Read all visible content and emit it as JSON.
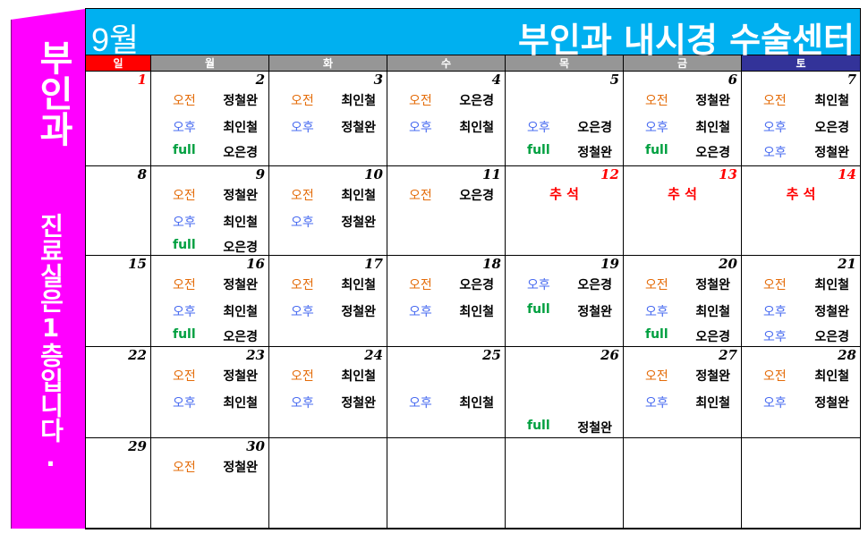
{
  "banner": {
    "title": "부인과",
    "notice": "진료실은1층입니다."
  },
  "header": {
    "month": "9월",
    "center_name": "부인과 내시경 수술센터"
  },
  "weekdays": [
    {
      "label": "일",
      "color": "#ff0000"
    },
    {
      "label": "월",
      "color": "#969696"
    },
    {
      "label": "화",
      "color": "#969696"
    },
    {
      "label": "수",
      "color": "#969696"
    },
    {
      "label": "목",
      "color": "#969696"
    },
    {
      "label": "금",
      "color": "#969696"
    },
    {
      "label": "토",
      "color": "#333399"
    }
  ],
  "colors": {
    "am": "#e46c0a",
    "pm": "#4a6cf0",
    "full": "#00a040",
    "header": "#00b0f0",
    "banner": "#ff00ff"
  },
  "weeks": [
    [
      {
        "day": "1",
        "red": true,
        "entries": []
      },
      {
        "day": "2",
        "entries": [
          {
            "label": "오전",
            "name": "정철완",
            "type": "am"
          },
          {
            "label": "오후",
            "name": "최인철",
            "type": "pm"
          },
          {
            "label": "full",
            "name": "오은경",
            "type": "full"
          }
        ]
      },
      {
        "day": "3",
        "entries": [
          {
            "label": "오전",
            "name": "최인철",
            "type": "am"
          },
          {
            "label": "오후",
            "name": "정철완",
            "type": "pm"
          }
        ]
      },
      {
        "day": "4",
        "entries": [
          {
            "label": "오전",
            "name": "오은경",
            "type": "am"
          },
          {
            "label": "오후",
            "name": "최인철",
            "type": "pm"
          }
        ]
      },
      {
        "day": "5",
        "entries": [
          null,
          {
            "label": "오후",
            "name": "오은경",
            "type": "pm"
          },
          {
            "label": "full",
            "name": "정철완",
            "type": "full"
          }
        ]
      },
      {
        "day": "6",
        "entries": [
          {
            "label": "오전",
            "name": "정철완",
            "type": "am"
          },
          {
            "label": "오후",
            "name": "최인철",
            "type": "pm"
          },
          {
            "label": "full",
            "name": "오은경",
            "type": "full"
          }
        ]
      },
      {
        "day": "7",
        "entries": [
          {
            "label": "오전",
            "name": "최인철",
            "type": "am"
          },
          {
            "label": "오후",
            "name": "오은경",
            "type": "pm"
          },
          {
            "label": "오후",
            "name": "정철완",
            "type": "pm"
          }
        ]
      }
    ],
    [
      {
        "day": "8",
        "entries": []
      },
      {
        "day": "9",
        "entries": [
          {
            "label": "오전",
            "name": "정철완",
            "type": "am"
          },
          {
            "label": "오후",
            "name": "최인철",
            "type": "pm"
          },
          {
            "label": "full",
            "name": "오은경",
            "type": "full"
          }
        ]
      },
      {
        "day": "10",
        "entries": [
          {
            "label": "오전",
            "name": "최인철",
            "type": "am"
          },
          {
            "label": "오후",
            "name": "정철완",
            "type": "pm"
          }
        ]
      },
      {
        "day": "11",
        "entries": [
          {
            "label": "오전",
            "name": "오은경",
            "type": "am"
          }
        ]
      },
      {
        "day": "12",
        "red": true,
        "holiday": "추 석",
        "entries": []
      },
      {
        "day": "13",
        "red": true,
        "holiday": "추 석",
        "entries": []
      },
      {
        "day": "14",
        "red": true,
        "holiday": "추 석",
        "entries": []
      }
    ],
    [
      {
        "day": "15",
        "entries": []
      },
      {
        "day": "16",
        "entries": [
          {
            "label": "오전",
            "name": "정철완",
            "type": "am"
          },
          {
            "label": "오후",
            "name": "최인철",
            "type": "pm"
          },
          {
            "label": "full",
            "name": "오은경",
            "type": "full"
          }
        ]
      },
      {
        "day": "17",
        "entries": [
          {
            "label": "오전",
            "name": "최인철",
            "type": "am"
          },
          {
            "label": "오후",
            "name": "정철완",
            "type": "pm"
          }
        ]
      },
      {
        "day": "18",
        "entries": [
          {
            "label": "오전",
            "name": "오은경",
            "type": "am"
          },
          {
            "label": "오후",
            "name": "최인철",
            "type": "pm"
          }
        ]
      },
      {
        "day": "19",
        "entries": [
          {
            "label": "오후",
            "name": "오은경",
            "type": "pm"
          },
          {
            "label": "full",
            "name": "정철완",
            "type": "full"
          }
        ]
      },
      {
        "day": "20",
        "entries": [
          {
            "label": "오전",
            "name": "정철완",
            "type": "am"
          },
          {
            "label": "오후",
            "name": "최인철",
            "type": "pm"
          },
          {
            "label": "full",
            "name": "오은경",
            "type": "full"
          }
        ]
      },
      {
        "day": "21",
        "entries": [
          {
            "label": "오전",
            "name": "최인철",
            "type": "am"
          },
          {
            "label": "오후",
            "name": "정철완",
            "type": "pm"
          },
          {
            "label": "오후",
            "name": "오은경",
            "type": "pm"
          }
        ]
      }
    ],
    [
      {
        "day": "22",
        "entries": []
      },
      {
        "day": "23",
        "entries": [
          {
            "label": "오전",
            "name": "정철완",
            "type": "am"
          },
          {
            "label": "오후",
            "name": "최인철",
            "type": "pm"
          }
        ]
      },
      {
        "day": "24",
        "entries": [
          {
            "label": "오전",
            "name": "최인철",
            "type": "am"
          },
          {
            "label": "오후",
            "name": "정철완",
            "type": "pm"
          }
        ]
      },
      {
        "day": "25",
        "entries": [
          null,
          {
            "label": "오후",
            "name": "최인철",
            "type": "pm"
          }
        ]
      },
      {
        "day": "26",
        "entries": [
          null,
          null,
          {
            "label": "full",
            "name": "정철완",
            "type": "full"
          }
        ]
      },
      {
        "day": "27",
        "entries": [
          {
            "label": "오전",
            "name": "정철완",
            "type": "am"
          },
          {
            "label": "오후",
            "name": "최인철",
            "type": "pm"
          }
        ]
      },
      {
        "day": "28",
        "entries": [
          {
            "label": "오전",
            "name": "최인철",
            "type": "am"
          },
          {
            "label": "오후",
            "name": "정철완",
            "type": "pm"
          }
        ]
      }
    ],
    [
      {
        "day": "29",
        "entries": []
      },
      {
        "day": "30",
        "entries": [
          {
            "label": "오전",
            "name": "정철완",
            "type": "am"
          }
        ]
      },
      {
        "day": "",
        "entries": []
      },
      {
        "day": "",
        "entries": []
      },
      {
        "day": "",
        "entries": []
      },
      {
        "day": "",
        "entries": []
      },
      {
        "day": "",
        "entries": []
      }
    ]
  ]
}
